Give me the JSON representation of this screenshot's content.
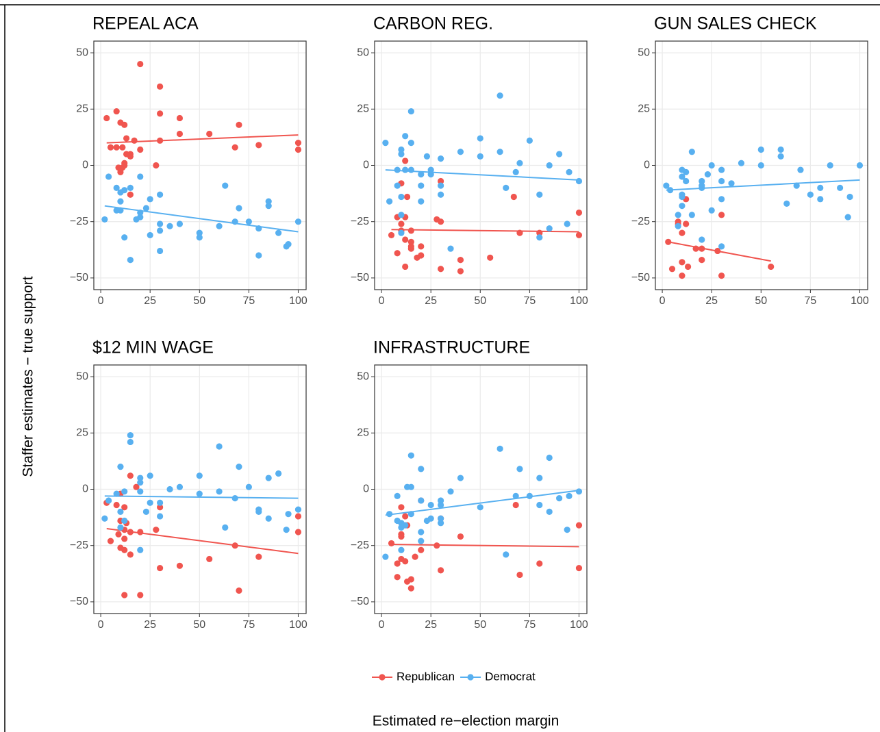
{
  "ylabel": "Staffer estimates − true support",
  "xlabel": "Estimated re−election margin",
  "legend": "bottom",
  "chart_data": [
    {
      "type": "scatter",
      "title": "REPEAL ACA",
      "xlim": [
        -3.5,
        104
      ],
      "ylim": [
        -55.2,
        55.2
      ],
      "grid": true,
      "xticks": [
        0,
        25,
        50,
        75,
        100
      ],
      "yticks": [
        {
          "value": -50,
          "label": "−50"
        },
        {
          "value": -25,
          "label": "−25"
        },
        0,
        25,
        50
      ],
      "series": [
        {
          "name": "Republican",
          "color": "#f0554f",
          "x": [
            3,
            8,
            5,
            8,
            10,
            12,
            11,
            13,
            15,
            15,
            17,
            20,
            20,
            30,
            30,
            30,
            40,
            40,
            55,
            70,
            68,
            80,
            100,
            100,
            28,
            12,
            11,
            9,
            10,
            15,
            12,
            13
          ],
          "values": [
            21,
            24,
            8,
            8,
            19,
            18,
            8,
            12,
            5,
            4,
            11,
            45,
            7,
            35,
            23,
            11,
            21,
            14,
            14,
            18,
            8,
            9,
            10,
            7,
            0,
            0,
            -1,
            -1,
            -3,
            -13,
            1,
            5
          ],
          "fit_x": [
            3,
            100
          ],
          "fit_values": [
            10,
            13.5
          ]
        },
        {
          "name": "Democrat",
          "color": "#58b0f0",
          "x": [
            2,
            4,
            8,
            8,
            10,
            10,
            10,
            12,
            12,
            15,
            15,
            20,
            20,
            20,
            23,
            25,
            25,
            30,
            30,
            30,
            30,
            35,
            40,
            50,
            50,
            60,
            63,
            68,
            70,
            75,
            80,
            80,
            85,
            85,
            90,
            94,
            95,
            100,
            18
          ],
          "values": [
            -24,
            -5,
            -10,
            -20,
            -20,
            -16,
            -12,
            -11,
            -32,
            -42,
            -10,
            -5,
            -21,
            -23,
            -19,
            -15,
            -31,
            -13,
            -26,
            -29,
            -38,
            -27,
            -26,
            -30,
            -32,
            -27,
            -9,
            -25,
            -19,
            -25,
            -28,
            -40,
            -16,
            -18,
            -30,
            -36,
            -35,
            -25,
            -24
          ],
          "fit_x": [
            2,
            100
          ],
          "fit_values": [
            -18,
            -29.5
          ]
        }
      ]
    },
    {
      "type": "scatter",
      "title": "CARBON REG.",
      "xlim": [
        -3.5,
        104
      ],
      "ylim": [
        -55.2,
        55.2
      ],
      "grid": true,
      "xticks": [
        0,
        25,
        50,
        75,
        100
      ],
      "yticks": [
        {
          "value": -50,
          "label": "−50"
        },
        {
          "value": -25,
          "label": "−25"
        },
        0,
        25,
        50
      ],
      "series": [
        {
          "name": "Republican",
          "color": "#f0554f",
          "x": [
            5,
            8,
            8,
            10,
            10,
            10,
            12,
            12,
            12,
            12,
            13,
            15,
            15,
            15,
            15,
            18,
            20,
            20,
            28,
            30,
            30,
            30,
            40,
            40,
            55,
            67,
            70,
            80,
            100,
            100
          ],
          "values": [
            -31,
            -23,
            -39,
            -8,
            -26,
            -29,
            2,
            -33,
            -23,
            -45,
            -14,
            -29,
            -34,
            -36,
            -37,
            -41,
            -36,
            -40,
            -24,
            -25,
            -7,
            -46,
            -42,
            -47,
            -41,
            -14,
            -30,
            -30,
            -21,
            -31
          ],
          "fit_x": [
            5,
            100
          ],
          "fit_values": [
            -28.5,
            -29.5
          ]
        },
        {
          "name": "Democrat",
          "color": "#58b0f0",
          "x": [
            2,
            4,
            8,
            8,
            10,
            10,
            10,
            12,
            12,
            15,
            15,
            15,
            10,
            20,
            20,
            20,
            23,
            25,
            25,
            30,
            30,
            30,
            35,
            40,
            50,
            50,
            60,
            60,
            63,
            68,
            70,
            75,
            80,
            80,
            85,
            90,
            95,
            94,
            100,
            85,
            10
          ],
          "values": [
            10,
            -16,
            -9,
            -2,
            7,
            5,
            -14,
            13,
            -2,
            24,
            10,
            -2,
            -22,
            -4,
            -9,
            -16,
            4,
            -2,
            -4,
            3,
            -9,
            -13,
            -37,
            6,
            12,
            4,
            31,
            6,
            -10,
            -3,
            1,
            11,
            -13,
            -32,
            0,
            5,
            -3,
            -26,
            -7,
            -28,
            -30
          ],
          "fit_x": [
            2,
            100
          ],
          "fit_values": [
            -2,
            -6.5
          ]
        }
      ]
    },
    {
      "type": "scatter",
      "title": "GUN SALES CHECK",
      "xlim": [
        -3.5,
        104
      ],
      "ylim": [
        -55.2,
        55.2
      ],
      "grid": true,
      "xticks": [
        0,
        25,
        50,
        75,
        100
      ],
      "yticks": [
        {
          "value": -50,
          "label": "−50"
        },
        {
          "value": -25,
          "label": "−25"
        },
        0,
        25,
        50
      ],
      "series": [
        {
          "name": "Republican",
          "color": "#f0554f",
          "x": [
            3,
            5,
            8,
            10,
            10,
            10,
            12,
            12,
            13,
            17,
            20,
            20,
            28,
            30,
            30,
            55,
            8
          ],
          "values": [
            -34,
            -46,
            -26,
            -30,
            -43,
            -49,
            -15,
            -26,
            -45,
            -37,
            -37,
            -42,
            -38,
            -22,
            -49,
            -45,
            -25
          ],
          "fit_x": [
            3,
            55
          ],
          "fit_values": [
            -34,
            -42.5
          ]
        },
        {
          "name": "Democrat",
          "color": "#58b0f0",
          "x": [
            2,
            4,
            8,
            8,
            10,
            10,
            10,
            10,
            10,
            12,
            12,
            15,
            15,
            20,
            20,
            20,
            20,
            23,
            25,
            25,
            30,
            30,
            30,
            30,
            35,
            40,
            50,
            50,
            60,
            60,
            63,
            70,
            68,
            75,
            80,
            80,
            85,
            90,
            94,
            95,
            100
          ],
          "values": [
            -9,
            -11,
            -22,
            -27,
            -2,
            -5,
            -13,
            -14,
            -18,
            -3,
            -7,
            6,
            -22,
            -7,
            -9,
            -10,
            -33,
            -4,
            0,
            -20,
            -2,
            -7,
            -15,
            -36,
            -8,
            1,
            7,
            0,
            7,
            4,
            -17,
            -2,
            -9,
            -13,
            -10,
            -15,
            0,
            -10,
            -23,
            -14,
            0
          ],
          "fit_x": [
            2,
            100
          ],
          "fit_values": [
            -11,
            -6.5
          ]
        }
      ]
    },
    {
      "type": "scatter",
      "title": "$12 MIN WAGE",
      "xlim": [
        -3.5,
        104
      ],
      "ylim": [
        -55.2,
        55.2
      ],
      "grid": true,
      "xticks": [
        0,
        25,
        50,
        75,
        100
      ],
      "yticks": [
        {
          "value": -50,
          "label": "−50"
        },
        {
          "value": -25,
          "label": "−25"
        },
        0,
        25,
        50
      ],
      "series": [
        {
          "name": "Republican",
          "color": "#f0554f",
          "x": [
            3,
            5,
            8,
            9,
            10,
            10,
            10,
            12,
            12,
            12,
            12,
            12,
            13,
            15,
            15,
            15,
            18,
            20,
            20,
            28,
            30,
            30,
            40,
            55,
            68,
            70,
            80,
            100,
            100
          ],
          "values": [
            -6,
            -23,
            -7,
            -20,
            -14,
            -26,
            -2,
            -8,
            -18,
            -22,
            -27,
            -47,
            -15,
            6,
            -19,
            -29,
            1,
            -19,
            -47,
            -18,
            -8,
            -35,
            -34,
            -31,
            -25,
            -45,
            -30,
            -12,
            -19
          ],
          "fit_x": [
            3,
            100
          ],
          "fit_values": [
            -17.5,
            -28.5
          ]
        },
        {
          "name": "Democrat",
          "color": "#58b0f0",
          "x": [
            2,
            4,
            8,
            10,
            10,
            10,
            12,
            12,
            15,
            15,
            20,
            20,
            20,
            20,
            23,
            25,
            25,
            30,
            30,
            35,
            40,
            50,
            50,
            60,
            60,
            63,
            68,
            70,
            75,
            80,
            80,
            85,
            85,
            90,
            94,
            95,
            100
          ],
          "values": [
            -13,
            -5,
            -2,
            10,
            -10,
            -17,
            -1,
            -14,
            24,
            21,
            5,
            3,
            -1,
            -27,
            -10,
            6,
            -6,
            -6,
            -12,
            0,
            1,
            6,
            -2,
            19,
            -1,
            -17,
            -4,
            10,
            1,
            -9,
            -10,
            5,
            -13,
            7,
            -18,
            -11,
            -9
          ],
          "fit_x": [
            2,
            100
          ],
          "fit_values": [
            -3,
            -4
          ]
        }
      ]
    },
    {
      "type": "scatter",
      "title": "INFRASTRUCTURE",
      "xlim": [
        -3.5,
        104
      ],
      "ylim": [
        -55.2,
        55.2
      ],
      "grid": true,
      "xticks": [
        0,
        25,
        50,
        75,
        100
      ],
      "yticks": [
        {
          "value": -50,
          "label": "−50"
        },
        {
          "value": -25,
          "label": "−25"
        },
        0,
        25,
        50
      ],
      "series": [
        {
          "name": "Republican",
          "color": "#f0554f",
          "x": [
            5,
            8,
            8,
            10,
            10,
            10,
            10,
            12,
            12,
            13,
            13,
            15,
            15,
            17,
            20,
            20,
            28,
            30,
            30,
            40,
            68,
            70,
            80,
            100,
            100
          ],
          "values": [
            -24,
            -33,
            -39,
            -8,
            -20,
            -21,
            -31,
            -12,
            -32,
            -16,
            -41,
            -40,
            -44,
            -30,
            -5,
            -27,
            -25,
            -13,
            -36,
            -21,
            -7,
            -38,
            -33,
            -16,
            -35
          ],
          "fit_x": [
            5,
            100
          ],
          "fit_values": [
            -24.5,
            -25.5
          ]
        },
        {
          "name": "Democrat",
          "color": "#58b0f0",
          "x": [
            2,
            4,
            8,
            8,
            10,
            10,
            10,
            12,
            13,
            15,
            15,
            15,
            20,
            20,
            20,
            20,
            23,
            25,
            25,
            30,
            30,
            30,
            30,
            35,
            40,
            50,
            60,
            63,
            68,
            70,
            75,
            80,
            80,
            85,
            85,
            90,
            94,
            95,
            100
          ],
          "values": [
            -30,
            -11,
            -3,
            -14,
            -15,
            -17,
            -27,
            -16,
            1,
            15,
            1,
            -11,
            9,
            -5,
            -19,
            -23,
            -14,
            -7,
            -13,
            -5,
            -7,
            -13,
            -15,
            -1,
            5,
            -8,
            18,
            -29,
            -3,
            9,
            -3,
            5,
            -7,
            14,
            -10,
            -4,
            -18,
            -3,
            -1
          ],
          "fit_x": [
            2,
            100
          ],
          "fit_values": [
            -11.5,
            -0.5
          ]
        }
      ]
    }
  ]
}
